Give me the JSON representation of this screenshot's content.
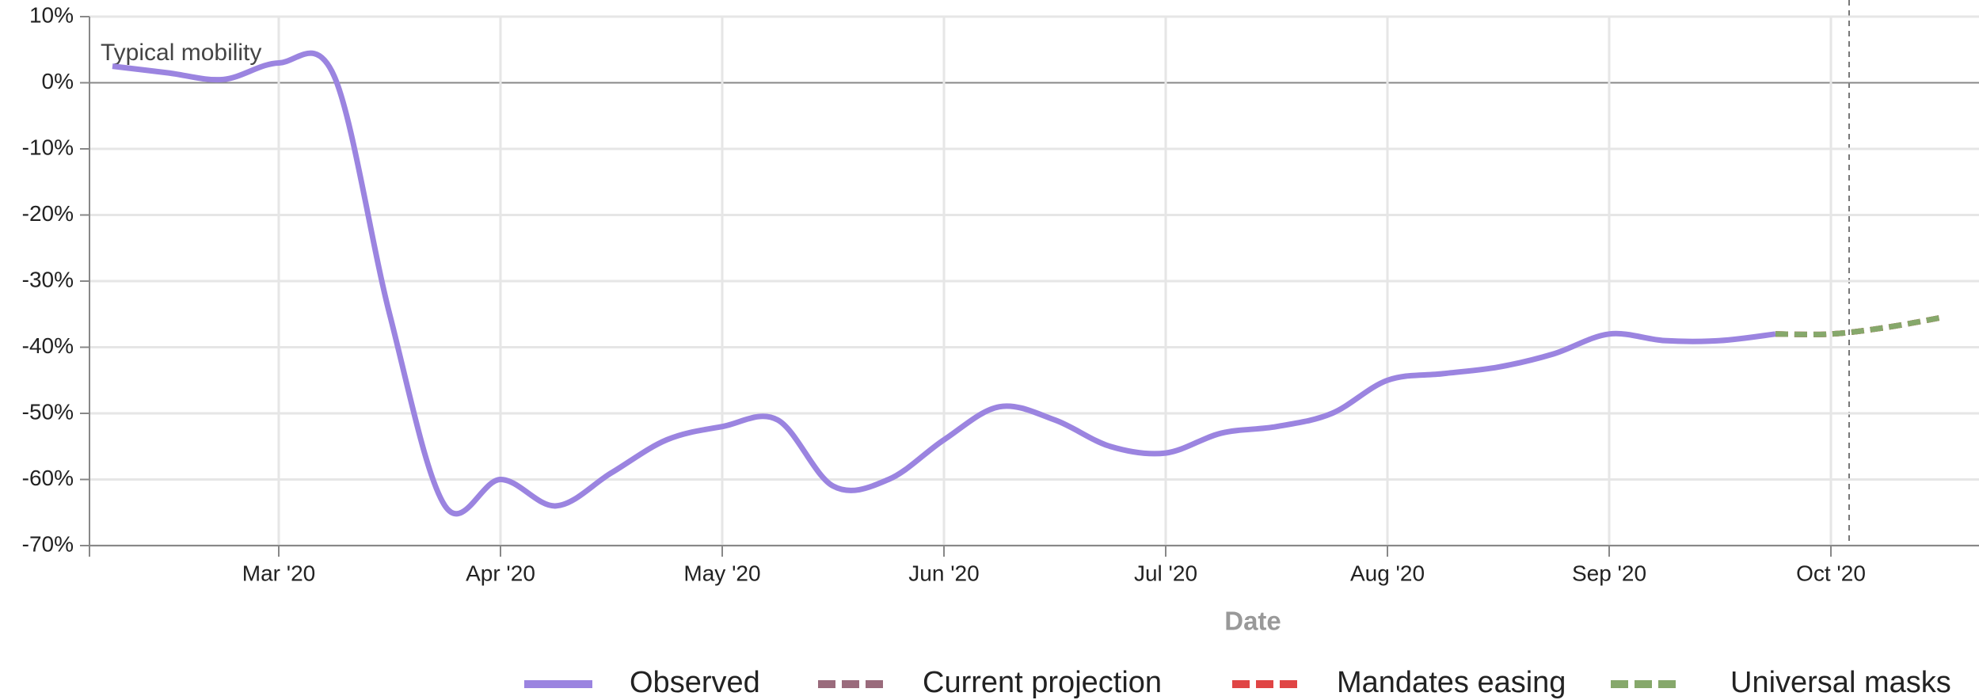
{
  "chart_data": {
    "type": "line",
    "annotation": "Typical mobility",
    "x_label": "Date",
    "categories": [
      null,
      null,
      null,
      "Mar '20",
      null,
      null,
      null,
      "Apr '20",
      null,
      null,
      null,
      "May '20",
      null,
      null,
      null,
      "Jun '20",
      null,
      null,
      null,
      "Jul '20",
      null,
      null,
      null,
      "Aug '20",
      null,
      null,
      null,
      "Sep '20",
      null,
      null,
      null,
      "Oct '20",
      null,
      null
    ],
    "series": [
      {
        "name": "Observed",
        "color": "#9b84e0",
        "dashed": false,
        "values": [
          2.5,
          1.5,
          0.5,
          3,
          1,
          -35,
          -64,
          -60,
          -64,
          -59,
          -54,
          -52,
          -51,
          -61,
          -60,
          -54,
          -49,
          -51,
          -55,
          -56,
          -53,
          -52,
          -50,
          -45,
          -44,
          -43,
          -41,
          -38,
          -39,
          -39,
          -38,
          null,
          null,
          null
        ]
      },
      {
        "name": "Current projection",
        "color": "#9a6b7c",
        "dashed": true,
        "values": [
          null,
          null,
          null,
          null,
          null,
          null,
          null,
          null,
          null,
          null,
          null,
          null,
          null,
          null,
          null,
          null,
          null,
          null,
          null,
          null,
          null,
          null,
          null,
          null,
          null,
          null,
          null,
          null,
          null,
          null,
          -38,
          -38,
          -37,
          -35.5
        ]
      },
      {
        "name": "Mandates easing",
        "color": "#e04545",
        "dashed": true,
        "values": [
          null,
          null,
          null,
          null,
          null,
          null,
          null,
          null,
          null,
          null,
          null,
          null,
          null,
          null,
          null,
          null,
          null,
          null,
          null,
          null,
          null,
          null,
          null,
          null,
          null,
          null,
          null,
          null,
          null,
          null,
          -38,
          -38,
          -37,
          -35.5
        ]
      },
      {
        "name": "Universal masks",
        "color": "#86a86b",
        "dashed": true,
        "values": [
          null,
          null,
          null,
          null,
          null,
          null,
          null,
          null,
          null,
          null,
          null,
          null,
          null,
          null,
          null,
          null,
          null,
          null,
          null,
          null,
          null,
          null,
          null,
          null,
          null,
          null,
          null,
          null,
          null,
          null,
          -38,
          -38,
          -37,
          -35.5
        ]
      }
    ],
    "ylim": [
      -70,
      10
    ],
    "yticks": [
      {
        "value": 10,
        "label": "10%"
      },
      {
        "value": 0,
        "label": "0%"
      },
      {
        "value": -10,
        "label": "-10%"
      },
      {
        "value": -20,
        "label": "-20%"
      },
      {
        "value": -30,
        "label": "-30%"
      },
      {
        "value": -40,
        "label": "-40%"
      },
      {
        "value": -50,
        "label": "-50%"
      },
      {
        "value": -60,
        "label": "-60%"
      },
      {
        "value": -70,
        "label": "-70%"
      }
    ],
    "grid": true
  }
}
